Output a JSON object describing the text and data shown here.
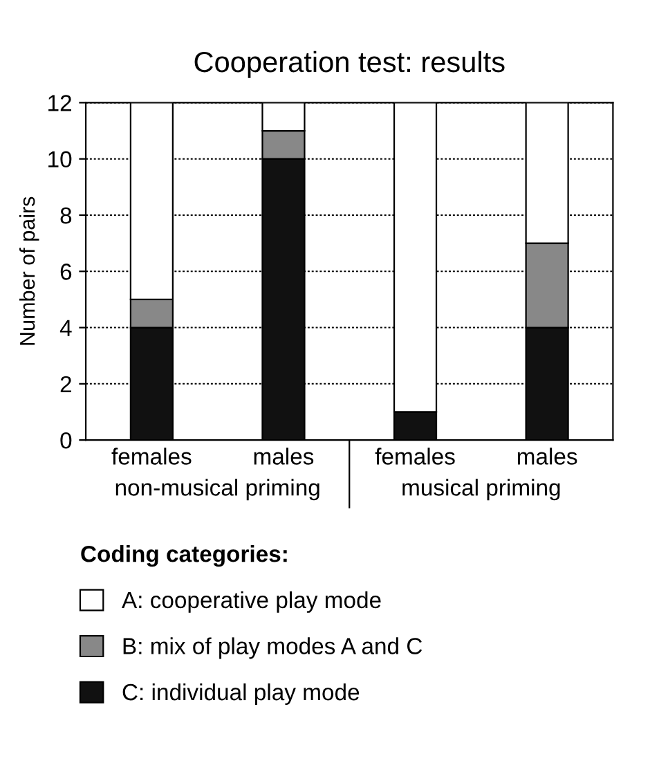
{
  "chart_data": {
    "type": "bar",
    "title": "Cooperation test: results",
    "ylabel": "Number of pairs",
    "categories": [
      "females",
      "males",
      "females",
      "males"
    ],
    "stacked": true,
    "series": [
      {
        "name": "C: individual play mode",
        "color": "#111111",
        "values": [
          4,
          10,
          1,
          4
        ]
      },
      {
        "name": "B: mix of play modes A and C",
        "color": "#888888",
        "values": [
          1,
          1,
          0,
          3
        ]
      },
      {
        "name": "A: cooperative play mode",
        "color": "#ffffff",
        "values": [
          7,
          1,
          11,
          5
        ]
      }
    ],
    "ylim": [
      0,
      12
    ],
    "yticks": [
      0,
      2,
      4,
      6,
      8,
      10,
      12
    ],
    "grid": "y",
    "legend": "bottom",
    "legend_title": "Coding categories:",
    "annotations": [
      "non-musical priming",
      "musical priming"
    ]
  }
}
